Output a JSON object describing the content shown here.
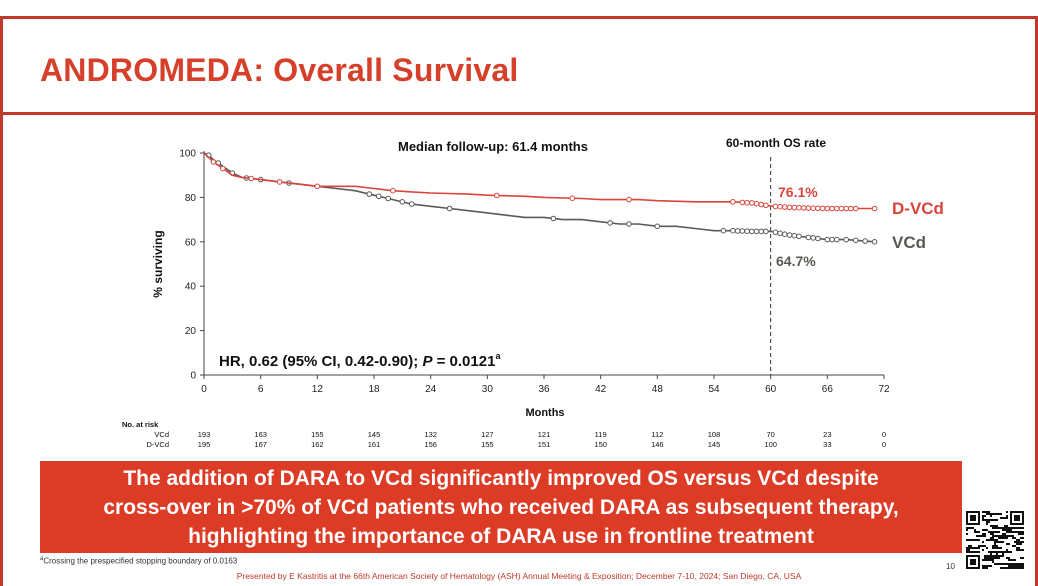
{
  "slide": {
    "title": "ANDROMEDA: Overall Survival",
    "banner_lines": [
      "The addition of DARA to VCd significantly improved OS versus VCd despite",
      "cross-over in >70% of VCd patients who received DARA as subsequent therapy,",
      "highlighting the importance of DARA use in frontline treatment"
    ],
    "footnote_marker": "a",
    "footnote": "Crossing the prespecified stopping boundary of 0.0163",
    "presented_by": "Presented by E Kastritis at the 66th American Society of Hematology (ASH) Annual Meeting & Exposition; December 7-10, 2024; San Diego, CA, USA",
    "page_number": "10"
  },
  "chart_data": {
    "type": "line",
    "xlabel": "Months",
    "ylabel": "% surviving",
    "xlim": [
      0,
      72
    ],
    "ylim": [
      0,
      100
    ],
    "xticks": [
      0,
      6,
      12,
      18,
      24,
      30,
      36,
      42,
      48,
      54,
      60,
      66,
      72
    ],
    "yticks": [
      0,
      20,
      40,
      60,
      80,
      100
    ],
    "grid": false,
    "annotations": {
      "median_followup": "Median follow-up: 61.4 months",
      "os_rate_label": "60-month OS rate",
      "reference_x": 60,
      "hr_text": "HR, 0.62 (95% CI, 0.42-0.90); ",
      "p_label": "P",
      "p_text": " = 0.0121",
      "p_superscript": "a"
    },
    "series": [
      {
        "name": "D-VCd",
        "color": "#d9453b",
        "os_rate_60": "76.1%",
        "points": [
          [
            0,
            100
          ],
          [
            0.5,
            98
          ],
          [
            1,
            96
          ],
          [
            2,
            93
          ],
          [
            3,
            90
          ],
          [
            4,
            89
          ],
          [
            6,
            88
          ],
          [
            8,
            87
          ],
          [
            10,
            86
          ],
          [
            12,
            85
          ],
          [
            14,
            85
          ],
          [
            16,
            85
          ],
          [
            18,
            84
          ],
          [
            20,
            83
          ],
          [
            22,
            82.5
          ],
          [
            24,
            82
          ],
          [
            28,
            81.5
          ],
          [
            30,
            81
          ],
          [
            34,
            80.5
          ],
          [
            36,
            80
          ],
          [
            40,
            79.5
          ],
          [
            42,
            79
          ],
          [
            46,
            79
          ],
          [
            48,
            78.5
          ],
          [
            52,
            78
          ],
          [
            56,
            78
          ],
          [
            58,
            77.5
          ],
          [
            60,
            76.1
          ],
          [
            62,
            75.5
          ],
          [
            64,
            75.2
          ],
          [
            66,
            75
          ],
          [
            68,
            75
          ],
          [
            71,
            75
          ]
        ],
        "censor_x": [
          1,
          2,
          5,
          8,
          12,
          20,
          31,
          39,
          45,
          56,
          57,
          57.5,
          58,
          58.5,
          59,
          59.5,
          60.5,
          61,
          61.5,
          62,
          62.5,
          63,
          63.5,
          64,
          64.5,
          65,
          65.5,
          66,
          66.5,
          67,
          67.5,
          68,
          68.5,
          69,
          71
        ]
      },
      {
        "name": "VCd",
        "color": "#5a5a55",
        "os_rate_60": "64.7%",
        "points": [
          [
            0,
            100
          ],
          [
            0.5,
            99
          ],
          [
            1,
            97
          ],
          [
            2,
            94
          ],
          [
            3,
            91
          ],
          [
            4,
            89
          ],
          [
            6,
            88
          ],
          [
            8,
            87
          ],
          [
            10,
            86
          ],
          [
            12,
            85
          ],
          [
            14,
            84
          ],
          [
            16,
            83
          ],
          [
            18,
            81
          ],
          [
            20,
            79
          ],
          [
            22,
            77
          ],
          [
            24,
            76
          ],
          [
            26,
            75
          ],
          [
            28,
            74
          ],
          [
            30,
            73
          ],
          [
            32,
            72
          ],
          [
            34,
            71
          ],
          [
            36,
            71
          ],
          [
            38,
            70
          ],
          [
            40,
            70
          ],
          [
            42,
            69
          ],
          [
            44,
            68
          ],
          [
            46,
            68
          ],
          [
            48,
            67
          ],
          [
            50,
            67
          ],
          [
            52,
            66
          ],
          [
            54,
            65
          ],
          [
            56,
            65
          ],
          [
            58,
            64.7
          ],
          [
            60,
            64.7
          ],
          [
            62,
            63
          ],
          [
            64,
            62
          ],
          [
            66,
            61
          ],
          [
            68,
            61
          ],
          [
            71,
            60
          ]
        ],
        "censor_x": [
          0.5,
          1.5,
          3,
          4.5,
          6,
          9,
          17.5,
          18.5,
          19.5,
          21,
          22,
          26,
          37,
          43,
          45,
          48,
          55,
          56,
          56.5,
          57,
          57.5,
          58,
          58.5,
          59,
          59.5,
          60.5,
          61,
          61.5,
          62,
          62.5,
          63,
          64,
          64.5,
          65,
          66,
          66.5,
          67,
          68,
          69,
          70,
          71
        ]
      }
    ],
    "risk_table": {
      "label": "No. at risk",
      "times": [
        0,
        6,
        12,
        18,
        24,
        30,
        36,
        42,
        48,
        54,
        60,
        66,
        72
      ],
      "rows": [
        {
          "name": "VCd",
          "counts": [
            "193",
            "163",
            "155",
            "145",
            "132",
            "127",
            "121",
            "119",
            "112",
            "108",
            "70",
            "23",
            "0"
          ]
        },
        {
          "name": "D-VCd",
          "counts": [
            "195",
            "167",
            "162",
            "161",
            "156",
            "155",
            "151",
            "150",
            "146",
            "145",
            "100",
            "33",
            "0"
          ]
        }
      ]
    }
  }
}
